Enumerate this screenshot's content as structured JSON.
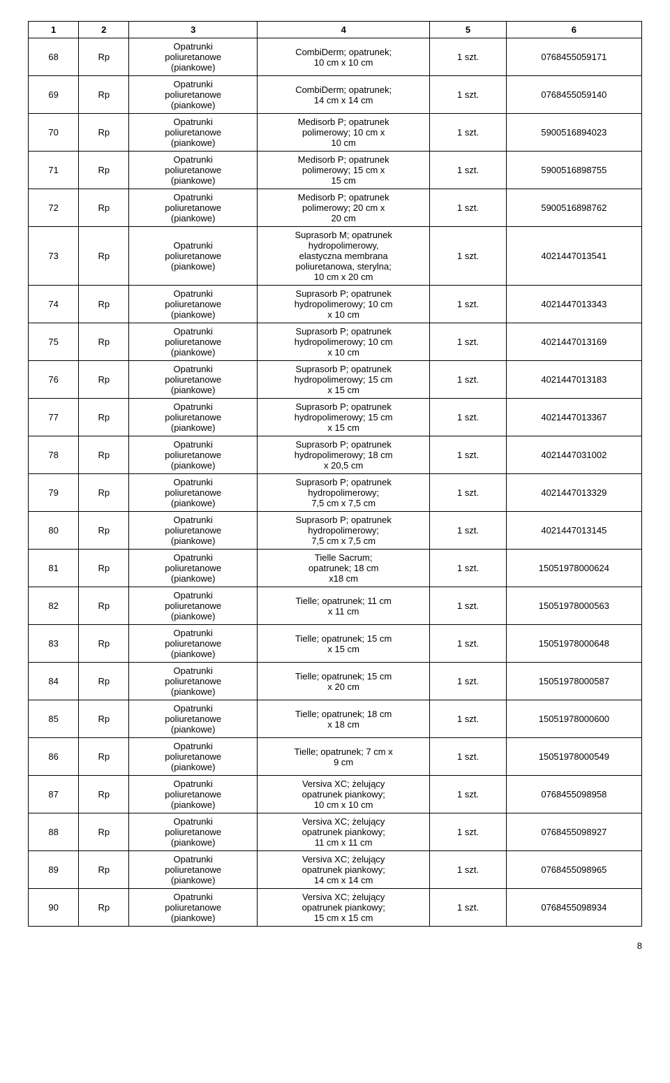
{
  "table": {
    "headers": [
      "1",
      "2",
      "3",
      "4",
      "5",
      "6"
    ],
    "col3_text": "Opatrunki\npoliuretanowe\n(piankowe)",
    "rows": [
      {
        "n": "68",
        "t": "Rp",
        "c4": "CombiDerm; opatrunek;\n10 cm x 10 cm",
        "c5": "1 szt.",
        "c6": "0768455059171"
      },
      {
        "n": "69",
        "t": "Rp",
        "c4": "CombiDerm; opatrunek;\n14 cm x 14 cm",
        "c5": "1 szt.",
        "c6": "0768455059140"
      },
      {
        "n": "70",
        "t": "Rp",
        "c4": "Medisorb P; opatrunek\npolimerowy; 10 cm x\n10 cm",
        "c5": "1 szt.",
        "c6": "5900516894023"
      },
      {
        "n": "71",
        "t": "Rp",
        "c4": "Medisorb P; opatrunek\npolimerowy; 15 cm x\n15 cm",
        "c5": "1 szt.",
        "c6": "5900516898755"
      },
      {
        "n": "72",
        "t": "Rp",
        "c4": "Medisorb P; opatrunek\npolimerowy; 20 cm x\n20 cm",
        "c5": "1 szt.",
        "c6": "5900516898762"
      },
      {
        "n": "73",
        "t": "Rp",
        "c4": "Suprasorb M; opatrunek\nhydropolimerowy,\nelastyczna membrana\npoliuretanowa, sterylna;\n10 cm x 20 cm",
        "c5": "1 szt.",
        "c6": "4021447013541"
      },
      {
        "n": "74",
        "t": "Rp",
        "c4": "Suprasorb P; opatrunek\nhydropolimerowy; 10 cm\nx 10 cm",
        "c5": "1 szt.",
        "c6": "4021447013343"
      },
      {
        "n": "75",
        "t": "Rp",
        "c4": "Suprasorb P; opatrunek\nhydropolimerowy; 10 cm\nx 10 cm",
        "c5": "1 szt.",
        "c6": "4021447013169"
      },
      {
        "n": "76",
        "t": "Rp",
        "c4": "Suprasorb P; opatrunek\nhydropolimerowy; 15 cm\nx 15 cm",
        "c5": "1 szt.",
        "c6": "4021447013183"
      },
      {
        "n": "77",
        "t": "Rp",
        "c4": "Suprasorb P; opatrunek\nhydropolimerowy; 15 cm\nx 15 cm",
        "c5": "1 szt.",
        "c6": "4021447013367"
      },
      {
        "n": "78",
        "t": "Rp",
        "c4": "Suprasorb P; opatrunek\nhydropolimerowy; 18 cm\nx 20,5 cm",
        "c5": "1 szt.",
        "c6": "4021447031002"
      },
      {
        "n": "79",
        "t": "Rp",
        "c4": "Suprasorb P; opatrunek\nhydropolimerowy;\n7,5 cm x 7,5 cm",
        "c5": "1 szt.",
        "c6": "4021447013329"
      },
      {
        "n": "80",
        "t": "Rp",
        "c4": "Suprasorb P; opatrunek\nhydropolimerowy;\n7,5 cm x 7,5 cm",
        "c5": "1 szt.",
        "c6": "4021447013145"
      },
      {
        "n": "81",
        "t": "Rp",
        "c4": "Tielle Sacrum;\nopatrunek; 18 cm\nx18 cm",
        "c5": "1 szt.",
        "c6": "15051978000624"
      },
      {
        "n": "82",
        "t": "Rp",
        "c4": "Tielle; opatrunek; 11 cm\nx 11 cm",
        "c5": "1 szt.",
        "c6": "15051978000563"
      },
      {
        "n": "83",
        "t": "Rp",
        "c4": "Tielle; opatrunek; 15 cm\nx 15 cm",
        "c5": "1 szt.",
        "c6": "15051978000648"
      },
      {
        "n": "84",
        "t": "Rp",
        "c4": "Tielle; opatrunek; 15 cm\nx 20 cm",
        "c5": "1 szt.",
        "c6": "15051978000587"
      },
      {
        "n": "85",
        "t": "Rp",
        "c4": "Tielle; opatrunek; 18 cm\nx 18 cm",
        "c5": "1 szt.",
        "c6": "15051978000600"
      },
      {
        "n": "86",
        "t": "Rp",
        "c4": "Tielle; opatrunek; 7 cm x\n9 cm",
        "c5": "1 szt.",
        "c6": "15051978000549"
      },
      {
        "n": "87",
        "t": "Rp",
        "c4": "Versiva XC; żelujący\nopatrunek piankowy;\n10 cm x 10 cm",
        "c5": "1 szt.",
        "c6": "0768455098958"
      },
      {
        "n": "88",
        "t": "Rp",
        "c4": "Versiva XC; żelujący\nopatrunek piankowy;\n11 cm x 11 cm",
        "c5": "1 szt.",
        "c6": "0768455098927"
      },
      {
        "n": "89",
        "t": "Rp",
        "c4": "Versiva XC; żelujący\nopatrunek piankowy;\n14 cm x 14 cm",
        "c5": "1 szt.",
        "c6": "0768455098965"
      },
      {
        "n": "90",
        "t": "Rp",
        "c4": "Versiva XC; żelujący\nopatrunek piankowy;\n15 cm x 15 cm",
        "c5": "1 szt.",
        "c6": "0768455098934"
      }
    ]
  },
  "page_number": "8"
}
